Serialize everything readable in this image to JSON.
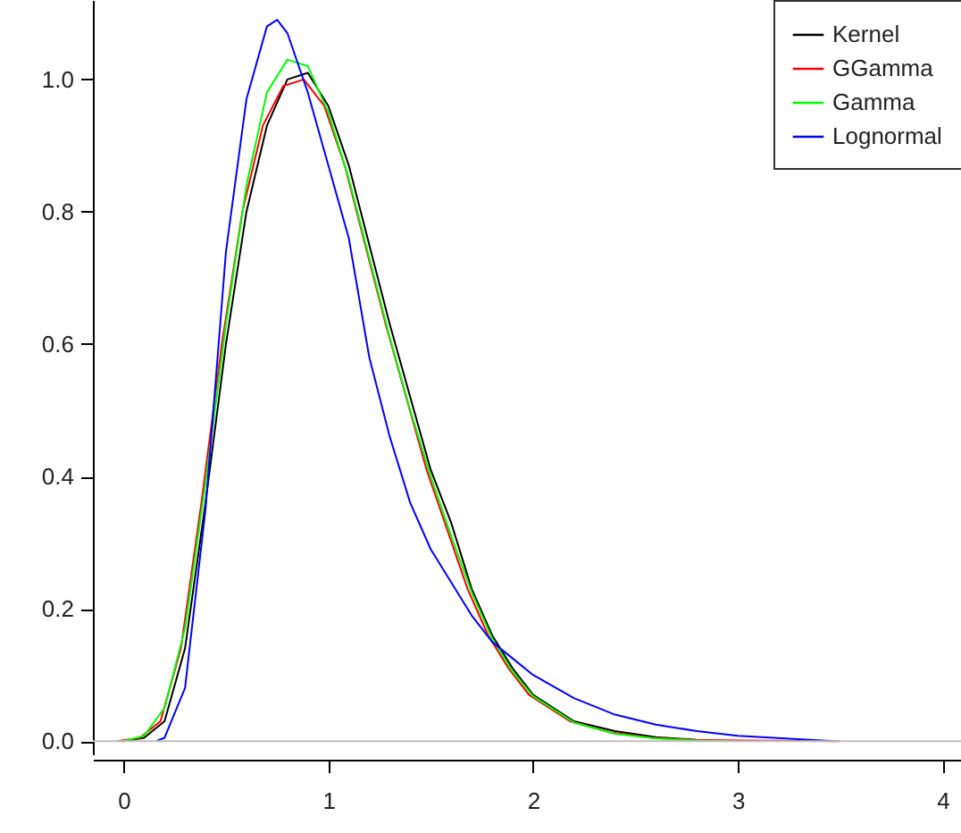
{
  "chart_data": {
    "type": "line",
    "xlim": [
      -0.15,
      4.09
    ],
    "ylim": [
      -0.02,
      1.12
    ],
    "xticks": [
      0,
      1,
      2,
      3,
      4
    ],
    "yticks": [
      {
        "value": 0,
        "label": "0.0"
      },
      {
        "value": 0.2,
        "label": "0.2"
      },
      {
        "value": 0.4,
        "label": "0.4"
      },
      {
        "value": 0.6,
        "label": "0.6"
      },
      {
        "value": 0.8,
        "label": "0.8"
      },
      {
        "value": 1,
        "label": "1.0"
      }
    ],
    "legend": "top right",
    "ref_lines": [
      {
        "axis": "y",
        "value": 0,
        "color": "#bebebe"
      }
    ],
    "series": [
      {
        "name": "Kernel",
        "color": "#000000",
        "x": [
          0,
          0.1,
          0.2,
          0.3,
          0.4,
          0.5,
          0.6,
          0.7,
          0.8,
          0.9,
          1.0,
          1.1,
          1.2,
          1.3,
          1.4,
          1.5,
          1.6,
          1.7,
          1.8,
          1.9,
          2.0,
          2.2,
          2.4,
          2.6,
          2.8
        ],
        "values": [
          0,
          0.005,
          0.03,
          0.14,
          0.36,
          0.6,
          0.8,
          0.93,
          1.0,
          1.01,
          0.96,
          0.87,
          0.75,
          0.63,
          0.52,
          0.41,
          0.33,
          0.23,
          0.16,
          0.11,
          0.07,
          0.03,
          0.015,
          0.006,
          0.002
        ]
      },
      {
        "name": "GGamma",
        "color": "#ff0000",
        "x": [
          -0.03,
          0.08,
          0.18,
          0.28,
          0.38,
          0.48,
          0.58,
          0.68,
          0.78,
          0.88,
          0.98,
          1.08,
          1.18,
          1.28,
          1.38,
          1.48,
          1.58,
          1.68,
          1.78,
          1.88,
          1.98,
          2.18,
          2.38,
          2.58,
          2.78,
          3.0,
          3.5
        ],
        "values": [
          0,
          0.005,
          0.03,
          0.14,
          0.36,
          0.6,
          0.8,
          0.93,
          0.99,
          1.0,
          0.96,
          0.87,
          0.75,
          0.63,
          0.52,
          0.41,
          0.32,
          0.23,
          0.16,
          0.11,
          0.07,
          0.03,
          0.013,
          0.005,
          0.002,
          0.001,
          0
        ]
      },
      {
        "name": "Gamma",
        "color": "#00ff00",
        "x": [
          0,
          0.1,
          0.2,
          0.3,
          0.4,
          0.5,
          0.6,
          0.7,
          0.8,
          0.9,
          1.0,
          1.1,
          1.2,
          1.3,
          1.4,
          1.5,
          1.6,
          1.7,
          1.8,
          1.9,
          2.0,
          2.2,
          2.4,
          2.6,
          2.8,
          2.95
        ],
        "values": [
          0,
          0.008,
          0.05,
          0.17,
          0.39,
          0.63,
          0.84,
          0.98,
          1.03,
          1.02,
          0.95,
          0.85,
          0.73,
          0.61,
          0.5,
          0.4,
          0.31,
          0.225,
          0.155,
          0.105,
          0.068,
          0.028,
          0.011,
          0.004,
          0.001,
          0
        ]
      },
      {
        "name": "Lognormal",
        "color": "#0000ff",
        "x": [
          0.16,
          0.2,
          0.3,
          0.4,
          0.5,
          0.6,
          0.7,
          0.75,
          0.8,
          0.9,
          1.0,
          1.1,
          1.2,
          1.3,
          1.4,
          1.5,
          1.6,
          1.7,
          1.8,
          1.9,
          2.0,
          2.2,
          2.4,
          2.6,
          2.8,
          3.0,
          3.47
        ],
        "values": [
          0,
          0.005,
          0.08,
          0.35,
          0.74,
          0.97,
          1.08,
          1.09,
          1.07,
          0.98,
          0.87,
          0.76,
          0.58,
          0.46,
          0.36,
          0.29,
          0.24,
          0.19,
          0.15,
          0.125,
          0.1,
          0.065,
          0.04,
          0.025,
          0.015,
          0.008,
          0
        ]
      }
    ]
  }
}
